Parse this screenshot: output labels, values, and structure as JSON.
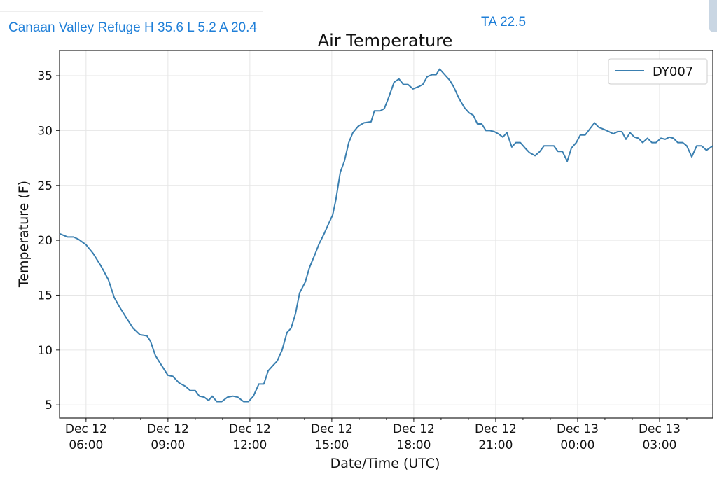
{
  "header": {
    "station": "Canaan Valley Refuge H 35.6 L 5.2 A 20.4",
    "ta": "TA 22.5"
  },
  "colors": {
    "line": "#3a7fb0",
    "header_text": "#1f7fd8"
  },
  "chart_data": {
    "type": "line",
    "title": "Air Temperature",
    "xlabel": "Date/Time (UTC)",
    "ylabel": "Temperature (F)",
    "x_units": "hours since Dec 12 00:00 UTC",
    "xlim": [
      5.03,
      28.95
    ],
    "ylim": [
      3.8,
      37.3
    ],
    "grid": true,
    "legend_position": "top-right",
    "yticks": [
      5,
      10,
      15,
      20,
      25,
      30,
      35
    ],
    "xticks": [
      {
        "value": 6,
        "line1": "Dec 12",
        "line2": "06:00"
      },
      {
        "value": 9,
        "line1": "Dec 12",
        "line2": "09:00"
      },
      {
        "value": 12,
        "line1": "Dec 12",
        "line2": "12:00"
      },
      {
        "value": 15,
        "line1": "Dec 12",
        "line2": "15:00"
      },
      {
        "value": 18,
        "line1": "Dec 12",
        "line2": "18:00"
      },
      {
        "value": 21,
        "line1": "Dec 12",
        "line2": "21:00"
      },
      {
        "value": 24,
        "line1": "Dec 13",
        "line2": "00:00"
      },
      {
        "value": 27,
        "line1": "Dec 13",
        "line2": "03:00"
      }
    ],
    "series": [
      {
        "name": "DY007",
        "x": [
          5.03,
          5.33,
          5.54,
          5.72,
          6.0,
          6.26,
          6.56,
          6.82,
          7.03,
          7.21,
          7.46,
          7.72,
          7.97,
          8.23,
          8.36,
          8.54,
          8.74,
          9.0,
          9.18,
          9.41,
          9.64,
          9.82,
          10.0,
          10.15,
          10.33,
          10.49,
          10.62,
          10.79,
          10.97,
          11.18,
          11.38,
          11.56,
          11.77,
          11.95,
          12.13,
          12.33,
          12.51,
          12.67,
          12.85,
          13.0,
          13.18,
          13.36,
          13.51,
          13.67,
          13.82,
          14.03,
          14.18,
          14.38,
          14.54,
          14.72,
          14.9,
          15.03,
          15.15,
          15.31,
          15.46,
          15.62,
          15.77,
          15.97,
          16.18,
          16.44,
          16.56,
          16.77,
          16.92,
          17.08,
          17.28,
          17.46,
          17.62,
          17.79,
          17.97,
          18.18,
          18.33,
          18.49,
          18.67,
          18.82,
          18.95,
          19.13,
          19.31,
          19.46,
          19.64,
          19.85,
          20.03,
          20.18,
          20.33,
          20.49,
          20.64,
          20.79,
          20.95,
          21.1,
          21.26,
          21.41,
          21.59,
          21.74,
          21.9,
          22.08,
          22.23,
          22.44,
          22.62,
          22.77,
          22.97,
          23.13,
          23.28,
          23.44,
          23.62,
          23.77,
          23.95,
          24.1,
          24.28,
          24.46,
          24.62,
          24.77,
          24.97,
          25.15,
          25.31,
          25.46,
          25.62,
          25.77,
          25.92,
          26.08,
          26.23,
          26.38,
          26.56,
          26.72,
          26.87,
          27.05,
          27.21,
          27.36,
          27.51,
          27.67,
          27.85,
          28.0,
          28.18,
          28.36,
          28.54,
          28.72,
          28.95
        ],
        "y": [
          20.6,
          20.3,
          20.3,
          20.1,
          19.6,
          18.8,
          17.6,
          16.4,
          14.8,
          14.0,
          13.0,
          12.0,
          11.4,
          11.3,
          10.8,
          9.5,
          8.7,
          7.7,
          7.6,
          7.0,
          6.7,
          6.3,
          6.3,
          5.8,
          5.7,
          5.4,
          5.8,
          5.3,
          5.3,
          5.7,
          5.8,
          5.7,
          5.3,
          5.3,
          5.8,
          6.9,
          6.9,
          8.1,
          8.6,
          9.0,
          10.0,
          11.6,
          12.0,
          13.3,
          15.2,
          16.2,
          17.5,
          18.7,
          19.7,
          20.6,
          21.6,
          22.3,
          23.7,
          26.2,
          27.2,
          28.9,
          29.8,
          30.4,
          30.7,
          30.8,
          31.8,
          31.8,
          32.0,
          33.0,
          34.4,
          34.7,
          34.2,
          34.2,
          33.8,
          34.0,
          34.2,
          34.9,
          35.1,
          35.1,
          35.6,
          35.1,
          34.6,
          34.0,
          33.0,
          32.1,
          31.6,
          31.4,
          30.6,
          30.6,
          30.0,
          30.0,
          29.9,
          29.7,
          29.4,
          29.8,
          28.5,
          28.9,
          28.9,
          28.4,
          28.0,
          27.7,
          28.1,
          28.6,
          28.6,
          28.6,
          28.1,
          28.1,
          27.2,
          28.4,
          28.9,
          29.6,
          29.6,
          30.2,
          30.7,
          30.3,
          30.1,
          29.9,
          29.7,
          29.9,
          29.9,
          29.2,
          29.8,
          29.4,
          29.3,
          28.9,
          29.3,
          28.9,
          28.9,
          29.3,
          29.2,
          29.4,
          29.3,
          28.9,
          28.9,
          28.6,
          27.6,
          28.6,
          28.6,
          28.2,
          28.6
        ]
      }
    ]
  }
}
